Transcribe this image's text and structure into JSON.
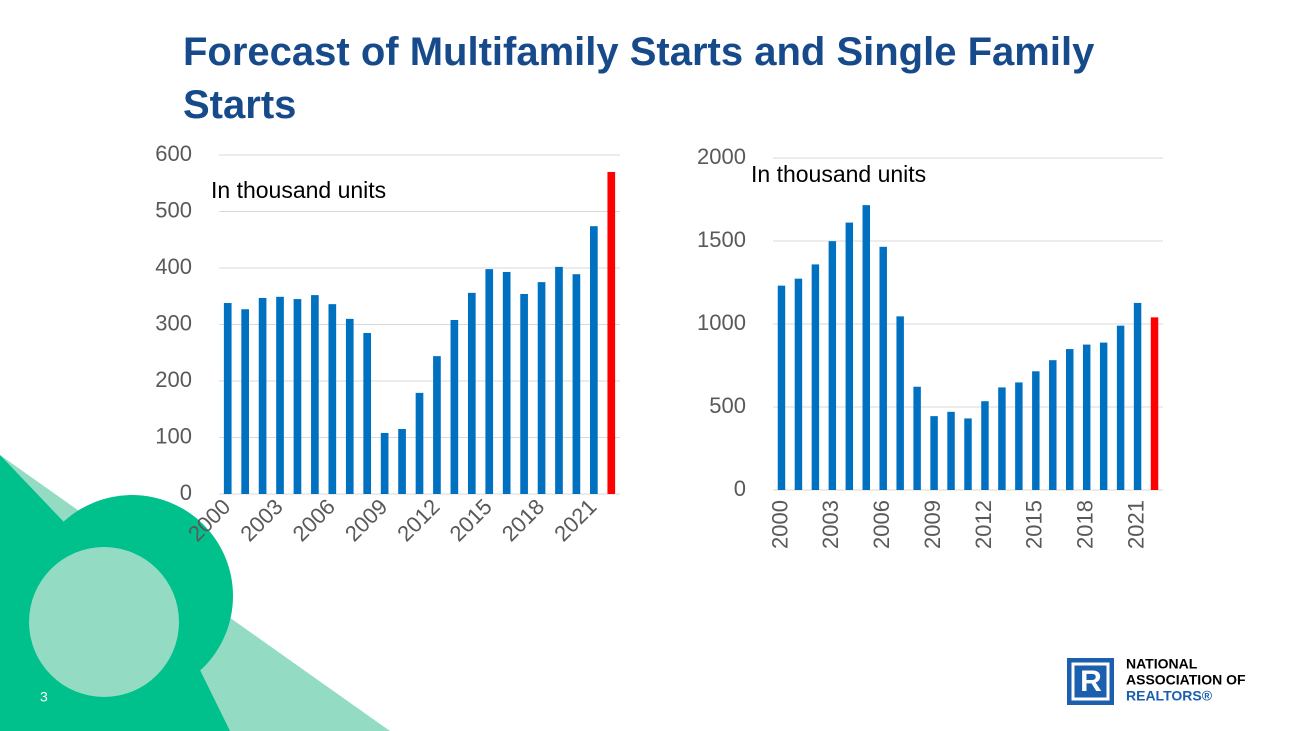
{
  "slide": {
    "title": "Forecast of Multifamily Starts and Single Family Starts",
    "page_number": "3",
    "logo": [
      "NATIONAL",
      "ASSOCIATION OF",
      "REALTORS®"
    ]
  },
  "chart_data": [
    {
      "type": "bar",
      "annotation": "In thousand units",
      "categories": [
        "2000",
        null,
        null,
        "2003",
        null,
        null,
        "2006",
        null,
        null,
        "2009",
        null,
        null,
        "2012",
        null,
        null,
        "2015",
        null,
        null,
        "2018",
        null,
        null,
        "2021",
        null
      ],
      "values": [
        338,
        327,
        347,
        349,
        345,
        352,
        336,
        310,
        285,
        108,
        115,
        179,
        244,
        308,
        356,
        398,
        393,
        354,
        375,
        402,
        389,
        474,
        570
      ],
      "colors": [
        "#0070c0",
        "#0070c0",
        "#0070c0",
        "#0070c0",
        "#0070c0",
        "#0070c0",
        "#0070c0",
        "#0070c0",
        "#0070c0",
        "#0070c0",
        "#0070c0",
        "#0070c0",
        "#0070c0",
        "#0070c0",
        "#0070c0",
        "#0070c0",
        "#0070c0",
        "#0070c0",
        "#0070c0",
        "#0070c0",
        "#0070c0",
        "#0070c0",
        "#ff0000"
      ],
      "ylim": [
        0,
        600
      ],
      "yticks": [
        0,
        100,
        200,
        300,
        400,
        500,
        600
      ],
      "grid": true
    },
    {
      "type": "bar",
      "annotation": "In thousand units",
      "categories": [
        "2000",
        null,
        null,
        "2003",
        null,
        null,
        "2006",
        null,
        null,
        "2009",
        null,
        null,
        "2012",
        null,
        null,
        "2015",
        null,
        null,
        "2018",
        null,
        null,
        "2021",
        null
      ],
      "values": [
        1231,
        1273,
        1359,
        1499,
        1611,
        1716,
        1465,
        1046,
        622,
        445,
        471,
        431,
        535,
        618,
        648,
        715,
        782,
        849,
        876,
        888,
        990,
        1127,
        1040
      ],
      "colors": [
        "#0070c0",
        "#0070c0",
        "#0070c0",
        "#0070c0",
        "#0070c0",
        "#0070c0",
        "#0070c0",
        "#0070c0",
        "#0070c0",
        "#0070c0",
        "#0070c0",
        "#0070c0",
        "#0070c0",
        "#0070c0",
        "#0070c0",
        "#0070c0",
        "#0070c0",
        "#0070c0",
        "#0070c0",
        "#0070c0",
        "#0070c0",
        "#0070c0",
        "#ff0000"
      ],
      "ylim": [
        0,
        2000
      ],
      "yticks": [
        0,
        500,
        1000,
        1500,
        2000
      ],
      "grid": true
    }
  ]
}
